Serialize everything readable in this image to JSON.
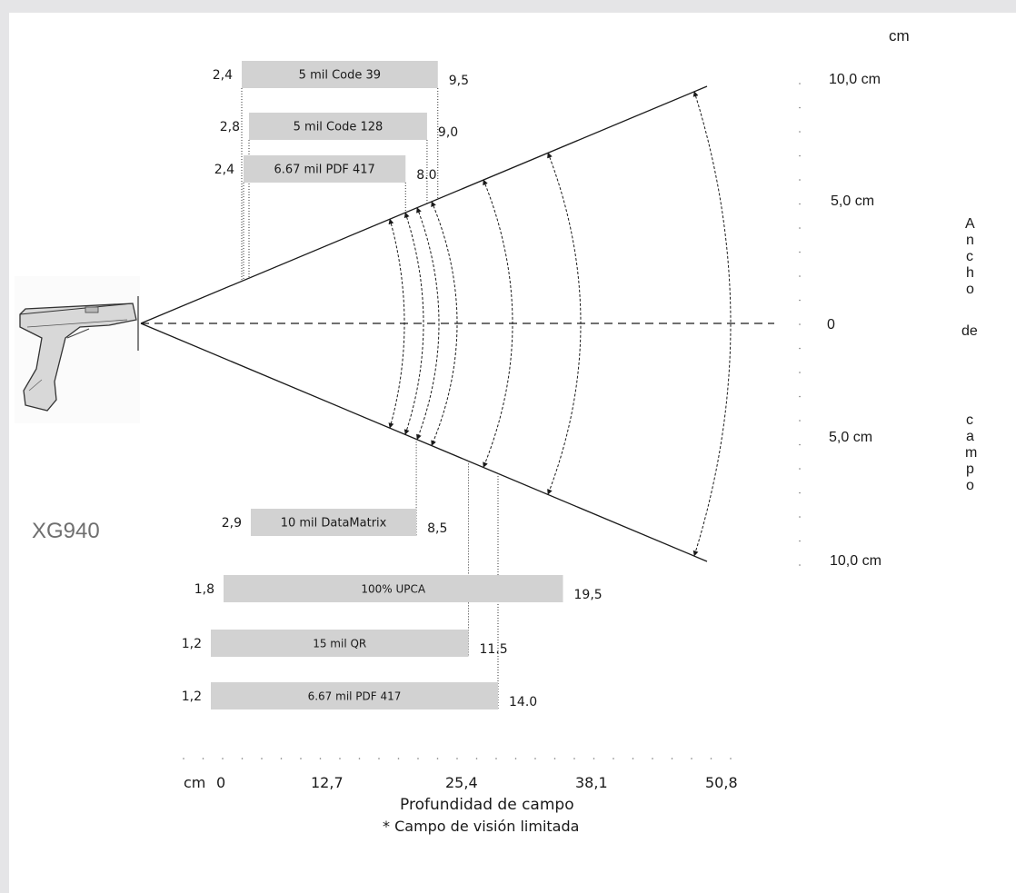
{
  "device": {
    "model": "XG940"
  },
  "chart_data": {
    "type": "bar",
    "title": "",
    "xlabel": "Profundidad de campo",
    "footnote": "* Campo de visión limitada",
    "x_unit": "cm",
    "x_ticks": [
      "0",
      "12,7",
      "25,4",
      "38,1",
      "50,8"
    ],
    "y_unit": "cm",
    "y_label_letters": [
      "A",
      "n",
      "c",
      "h",
      "o",
      "de",
      "c",
      "a",
      "m",
      "p",
      "o"
    ],
    "y_ticks": [
      "10,0 cm",
      "5,0 cm",
      "0",
      "5,0 cm",
      "10,0 cm"
    ],
    "upper_bars": [
      {
        "label": "5 mil Code 39",
        "near": "2,4",
        "far": "9,5",
        "near_v": 2.4,
        "far_v": 9.5
      },
      {
        "label": "5 mil Code 128",
        "near": "2,8",
        "far": "9,0",
        "near_v": 2.8,
        "far_v": 9.0
      },
      {
        "label": "6.67 mil PDF 417",
        "near": "2,4",
        "far": "8.0",
        "near_v": 2.4,
        "far_v": 8.0
      }
    ],
    "lower_bars": [
      {
        "label": "10 mil DataMatrix",
        "near": "2,9",
        "far": "8,5",
        "near_v": 2.9,
        "far_v": 8.5
      },
      {
        "label": "100% UPCA",
        "near": "1,8",
        "far": "19,5",
        "near_v": 1.8,
        "far_v": 19.5
      },
      {
        "label": "15 mil QR",
        "near": "1,2",
        "far": "11.5",
        "near_v": 1.2,
        "far_v": 11.5
      },
      {
        "label": "6.67 mil PDF 417",
        "near": "1,2",
        "far": "14.0",
        "near_v": 1.2,
        "far_v": 14.0
      }
    ]
  }
}
